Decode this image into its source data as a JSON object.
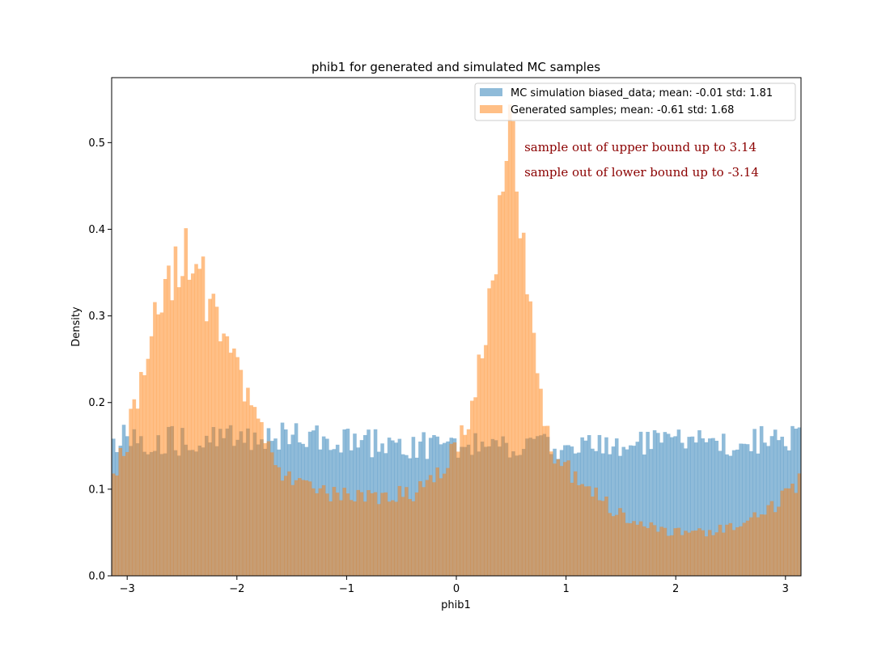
{
  "chart_data": {
    "type": "histogram",
    "title": "phib1 for generated and simulated MC samples",
    "xlabel": "phib1",
    "ylabel": "Density",
    "xlim": [
      -3.14159,
      3.14159
    ],
    "ylim": [
      0,
      0.575
    ],
    "xticks": [
      -3,
      -2,
      -1,
      0,
      1,
      2,
      3
    ],
    "yticks": [
      0.0,
      0.1,
      0.2,
      0.3,
      0.4,
      0.5
    ],
    "xtick_labels": [
      "−3",
      "−2",
      "−1",
      "0",
      "1",
      "2",
      "3"
    ],
    "ytick_labels": [
      "0.0",
      "0.1",
      "0.2",
      "0.3",
      "0.4",
      "0.5"
    ],
    "bin_count": 200,
    "grid": false,
    "legend_position": "top-right",
    "series": [
      {
        "name": "MC simulation biased_data; mean: -0.01 std: 1.81",
        "color": "#1f77b4",
        "alpha": 0.5,
        "mean": -0.01,
        "std": 1.81,
        "profile": [
          [
            -3.14,
            0.16
          ],
          [
            -2.5,
            0.155
          ],
          [
            -2.0,
            0.16
          ],
          [
            -1.5,
            0.16
          ],
          [
            -1.0,
            0.155
          ],
          [
            -0.5,
            0.15
          ],
          [
            0.0,
            0.15
          ],
          [
            0.5,
            0.15
          ],
          [
            1.0,
            0.15
          ],
          [
            1.5,
            0.15
          ],
          [
            2.0,
            0.155
          ],
          [
            2.5,
            0.155
          ],
          [
            3.14,
            0.16
          ]
        ]
      },
      {
        "name": "Generated samples; mean: -0.61 std: 1.68",
        "color": "#ff7f0e",
        "alpha": 0.5,
        "mean": -0.61,
        "std": 1.68,
        "profile": [
          [
            -3.14,
            0.115
          ],
          [
            -3.0,
            0.16
          ],
          [
            -2.85,
            0.24
          ],
          [
            -2.7,
            0.33
          ],
          [
            -2.55,
            0.36
          ],
          [
            -2.45,
            0.37
          ],
          [
            -2.3,
            0.33
          ],
          [
            -2.15,
            0.28
          ],
          [
            -2.0,
            0.24
          ],
          [
            -1.85,
            0.19
          ],
          [
            -1.7,
            0.14
          ],
          [
            -1.5,
            0.11
          ],
          [
            -1.2,
            0.095
          ],
          [
            -0.8,
            0.09
          ],
          [
            -0.4,
            0.095
          ],
          [
            -0.1,
            0.13
          ],
          [
            0.1,
            0.18
          ],
          [
            0.25,
            0.27
          ],
          [
            0.35,
            0.36
          ],
          [
            0.45,
            0.47
          ],
          [
            0.5,
            0.5
          ],
          [
            0.55,
            0.45
          ],
          [
            0.65,
            0.32
          ],
          [
            0.75,
            0.22
          ],
          [
            0.9,
            0.14
          ],
          [
            1.1,
            0.11
          ],
          [
            1.3,
            0.09
          ],
          [
            1.6,
            0.06
          ],
          [
            2.0,
            0.05
          ],
          [
            2.3,
            0.05
          ],
          [
            2.6,
            0.06
          ],
          [
            2.85,
            0.075
          ],
          [
            3.14,
            0.11
          ]
        ]
      }
    ],
    "annotations": [
      {
        "text": "sample out of upper bound up to 3.14",
        "x": 0.62,
        "y": 0.49,
        "color": "#8b0000"
      },
      {
        "text": "sample out of lower bound up to -3.14",
        "x": 0.62,
        "y": 0.461,
        "color": "#8b0000"
      }
    ]
  }
}
